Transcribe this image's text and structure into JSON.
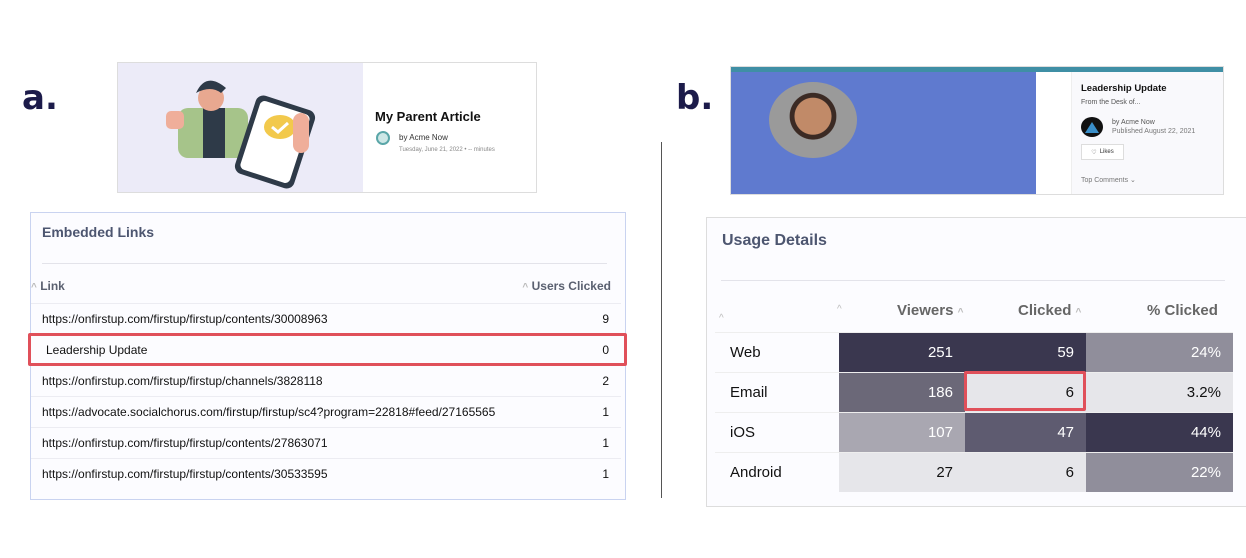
{
  "labels": {
    "a": "a.",
    "b": "b."
  },
  "article_a": {
    "title": "My Parent Article",
    "byline": "by Acme Now",
    "date": "Tuesday, June 21, 2022 • -- minutes"
  },
  "article_b": {
    "title": "Leadership Update",
    "subtitle": "From the Desk of...",
    "byline": "by Acme Now",
    "published": "Published August 22, 2021",
    "likes": "Likes",
    "top_comments": "Top Comments"
  },
  "embedded_links": {
    "title": "Embedded Links",
    "columns": [
      "Link",
      "Users Clicked"
    ],
    "rows": [
      {
        "link": "https://onfirstup.com/firstup/firstup/contents/30008963",
        "clicked": "9"
      },
      {
        "link": "Leadership Update",
        "clicked": "0",
        "highlighted": true
      },
      {
        "link": "https://onfirstup.com/firstup/firstup/channels/3828118",
        "clicked": "2"
      },
      {
        "link": "https://advocate.socialchorus.com/firstup/firstup/sc4?program=22818#feed/27165565",
        "clicked": "1"
      },
      {
        "link": "https://onfirstup.com/firstup/firstup/contents/27863071",
        "clicked": "1"
      },
      {
        "link": "https://onfirstup.com/firstup/firstup/contents/30533595",
        "clicked": "1"
      }
    ]
  },
  "usage_details": {
    "title": "Usage Details",
    "columns": [
      "Viewers",
      "Clicked",
      "% Clicked"
    ],
    "rows": [
      {
        "label": "Web",
        "viewers": "251",
        "clicked": "59",
        "pct": "24%",
        "colors": [
          "#3a374f",
          "#3a374f",
          "#908e9b"
        ]
      },
      {
        "label": "Email",
        "viewers": "186",
        "clicked": "6",
        "pct": "3.2%",
        "colors": [
          "#6b6878",
          "#e6e6ea",
          "#e6e6ea"
        ],
        "highlight": "clicked"
      },
      {
        "label": "iOS",
        "viewers": "107",
        "clicked": "47",
        "pct": "44%",
        "colors": [
          "#a9a7b1",
          "#5e5b70",
          "#3a374f"
        ]
      },
      {
        "label": "Android",
        "viewers": "27",
        "clicked": "6",
        "pct": "22%",
        "colors": [
          "#e6e6ea",
          "#e6e6ea",
          "#908e9b"
        ]
      }
    ]
  },
  "colors": {
    "highlight": "#e0505a",
    "navy": "#1c1b4a",
    "teal": "#3f8fa5",
    "blue": "#5f7acf"
  }
}
